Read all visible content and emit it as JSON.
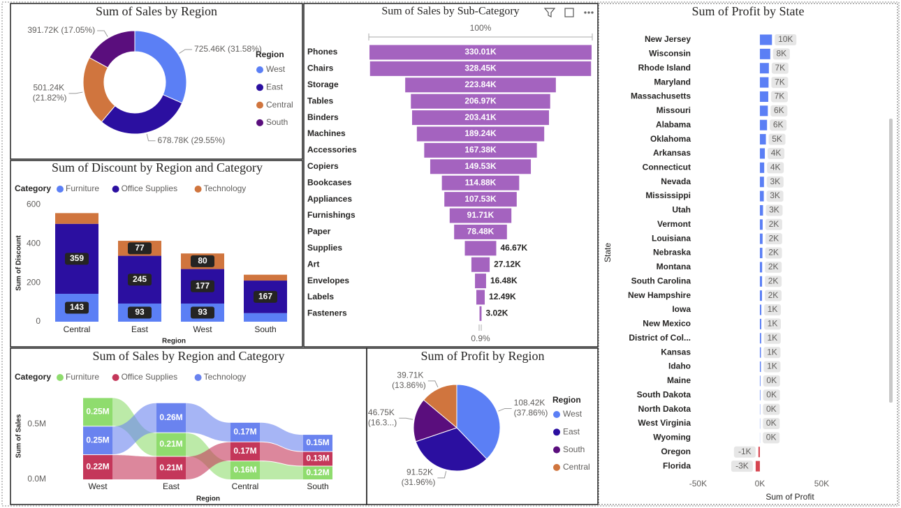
{
  "chart_data": [
    {
      "type": "donut",
      "title": "Sum of Sales by Region",
      "legend_title": "Region",
      "categories": [
        "West",
        "East",
        "Central",
        "South"
      ],
      "values": [
        725.46,
        678.78,
        501.24,
        391.72
      ],
      "value_labels": [
        "725.46K (31.58%)",
        "678.78K (29.55%)",
        "501.24K (21.82%)",
        "391.72K (17.05%)"
      ],
      "colors": [
        "#5b7ff5",
        "#2b0fa0",
        "#d0753e",
        "#5a0e7d"
      ]
    },
    {
      "type": "stacked_bar",
      "title": "Sum of Discount by Region and Category",
      "legend_title": "Category",
      "x_label": "Region",
      "y_label": "Sum of Discount",
      "categories": [
        "Central",
        "East",
        "West",
        "South"
      ],
      "series": [
        {
          "name": "Furniture",
          "color": "#5b7ff5",
          "values": [
            143,
            93,
            93,
            44
          ]
        },
        {
          "name": "Office Supplies",
          "color": "#2b0fa0",
          "values": [
            359,
            245,
            177,
            167
          ]
        },
        {
          "name": "Technology",
          "color": "#d0753e",
          "values": [
            55,
            77,
            80,
            30
          ]
        }
      ],
      "ylim": [
        0,
        630
      ],
      "yticks": [
        0,
        200,
        400,
        600
      ],
      "grid": false
    },
    {
      "type": "funnel",
      "title": "Sum of Sales by Sub-Category",
      "top_label": "100%",
      "bottom_label": "0.9%",
      "color": "#a463bf",
      "categories": [
        "Phones",
        "Chairs",
        "Storage",
        "Tables",
        "Binders",
        "Machines",
        "Accessories",
        "Copiers",
        "Bookcases",
        "Appliances",
        "Furnishings",
        "Paper",
        "Supplies",
        "Art",
        "Envelopes",
        "Labels",
        "Fasteners"
      ],
      "values": [
        330.01,
        328.45,
        223.84,
        206.97,
        203.41,
        189.24,
        167.38,
        149.53,
        114.88,
        107.53,
        91.71,
        78.48,
        46.67,
        27.12,
        16.48,
        12.49,
        3.02
      ],
      "value_labels": [
        "330.01K",
        "328.45K",
        "223.84K",
        "206.97K",
        "203.41K",
        "189.24K",
        "167.38K",
        "149.53K",
        "114.88K",
        "107.53K",
        "91.71K",
        "78.48K",
        "46.67K",
        "27.12K",
        "16.48K",
        "12.49K",
        "3.02K"
      ]
    },
    {
      "type": "hbar",
      "title": "Sum of Profit by State",
      "x_label": "Sum of Profit",
      "y_label": "State",
      "color": "#5b7ff5",
      "negative_color": "#d64550",
      "categories": [
        "New Jersey",
        "Wisconsin",
        "Rhode Island",
        "Maryland",
        "Massachusetts",
        "Missouri",
        "Alabama",
        "Oklahoma",
        "Arkansas",
        "Connecticut",
        "Nevada",
        "Mississippi",
        "Utah",
        "Vermont",
        "Louisiana",
        "Nebraska",
        "Montana",
        "South Carolina",
        "New Hampshire",
        "Iowa",
        "New Mexico",
        "District of Col...",
        "Kansas",
        "Idaho",
        "Maine",
        "South Dakota",
        "North Dakota",
        "West Virginia",
        "Wyoming",
        "Oregon",
        "Florida"
      ],
      "values": [
        9773,
        8402,
        7286,
        7031,
        6786,
        6436,
        5787,
        4854,
        4009,
        3511,
        3317,
        3173,
        2547,
        2245,
        2196,
        2037,
        1833,
        1769,
        1707,
        1184,
        1157,
        1060,
        836,
        827,
        454,
        395,
        230,
        186,
        100,
        -1190,
        -3399
      ],
      "value_labels": [
        "10K",
        "8K",
        "7K",
        "7K",
        "7K",
        "6K",
        "6K",
        "5K",
        "4K",
        "4K",
        "3K",
        "3K",
        "3K",
        "2K",
        "2K",
        "2K",
        "2K",
        "2K",
        "2K",
        "1K",
        "1K",
        "1K",
        "1K",
        "1K",
        "0K",
        "0K",
        "0K",
        "0K",
        "0K",
        "-1K",
        "-3K"
      ],
      "xlim": [
        -55000,
        65000
      ],
      "xticks": [
        {
          "value": -50000,
          "label": "-50K"
        },
        {
          "value": 0,
          "label": "0K"
        },
        {
          "value": 50000,
          "label": "50K"
        }
      ],
      "grid": false
    },
    {
      "type": "ribbon",
      "title": "Sum of Sales by Region and Category",
      "legend_title": "Category",
      "x_label": "Region",
      "y_label": "Sum of Sales",
      "categories": [
        "West",
        "East",
        "Central",
        "South"
      ],
      "series": [
        {
          "name": "Furniture",
          "color": "#8fdc6e",
          "values": [
            252612,
            208291,
            163797,
            117299
          ],
          "value_labels": [
            "0.25M",
            "0.21M",
            "0.16M",
            "0.12M"
          ]
        },
        {
          "name": "Office Supplies",
          "color": "#c4375a",
          "values": [
            220853,
            205516,
            167026,
            125651
          ],
          "value_labels": [
            "0.22M",
            "0.21M",
            "0.17M",
            "0.13M"
          ]
        },
        {
          "name": "Technology",
          "color": "#6a83ef",
          "values": [
            251992,
            264974,
            170416,
            148772
          ],
          "value_labels": [
            "0.25M",
            "0.26M",
            "0.17M",
            "0.15M"
          ]
        }
      ],
      "ylim": [
        0,
        800000
      ],
      "yticks": [
        {
          "value": 0,
          "label": "0.0M"
        },
        {
          "value": 500000,
          "label": "0.5M"
        }
      ],
      "grid": false
    },
    {
      "type": "pie",
      "title": "Sum of Profit by Region",
      "legend_title": "Region",
      "categories": [
        "West",
        "East",
        "South",
        "Central"
      ],
      "values": [
        108.42,
        91.52,
        46.75,
        39.71
      ],
      "value_labels": [
        "108.42K (37.86%)",
        "91.52K (31.96%)",
        "46.75K (16.3...)",
        "39.71K (13.86%)"
      ],
      "colors": [
        "#5b7ff5",
        "#2b0fa0",
        "#5a0e7d",
        "#d0753e"
      ]
    }
  ]
}
